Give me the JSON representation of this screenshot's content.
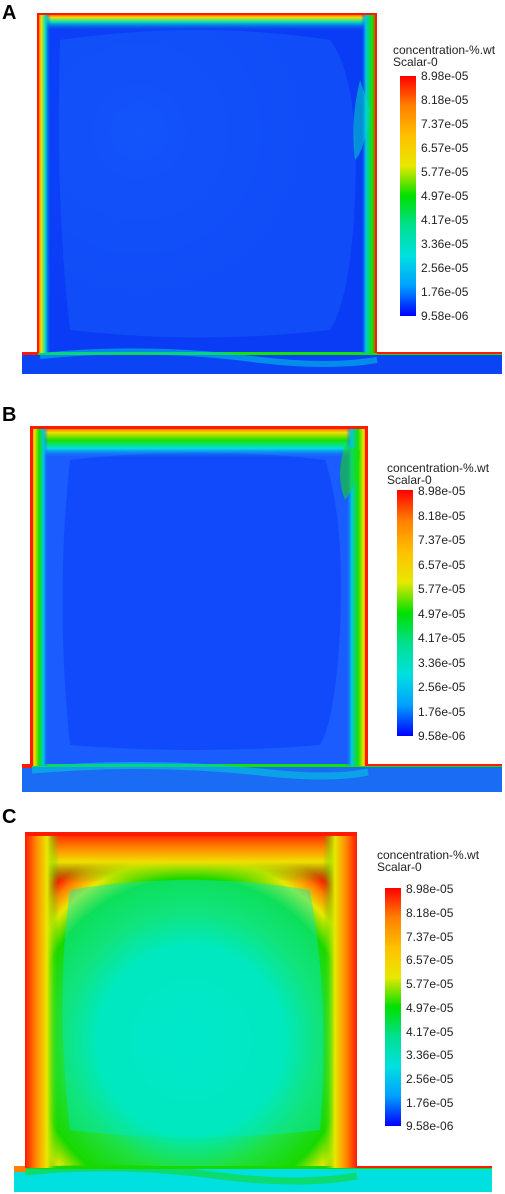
{
  "colors": {
    "low": "#0a3cf5",
    "mid": "#00e0c0",
    "green": "#18e000",
    "high": "#ff1a00"
  },
  "panels": [
    {
      "label": "A",
      "legend": {
        "title_line1": "concentration-%.wt",
        "title_line2": "Scalar-0",
        "ticks": [
          "8.98e-05",
          "8.18e-05",
          "7.37e-05",
          "6.57e-05",
          "5.77e-05",
          "4.97e-05",
          "4.17e-05",
          "3.36e-05",
          "2.56e-05",
          "1.76e-05",
          "9.58e-06"
        ]
      }
    },
    {
      "label": "B",
      "legend": {
        "title_line1": "concentration-%.wt",
        "title_line2": "Scalar-0",
        "ticks": [
          "8.98e-05",
          "8.18e-05",
          "7.37e-05",
          "6.57e-05",
          "5.77e-05",
          "4.97e-05",
          "4.17e-05",
          "3.36e-05",
          "2.56e-05",
          "1.76e-05",
          "9.58e-06"
        ]
      }
    },
    {
      "label": "C",
      "legend": {
        "title_line1": "concentration-%.wt",
        "title_line2": "Scalar-0",
        "ticks": [
          "8.98e-05",
          "8.18e-05",
          "7.37e-05",
          "6.57e-05",
          "5.77e-05",
          "4.97e-05",
          "4.17e-05",
          "3.36e-05",
          "2.56e-05",
          "1.76e-05",
          "9.58e-06"
        ]
      }
    }
  ]
}
